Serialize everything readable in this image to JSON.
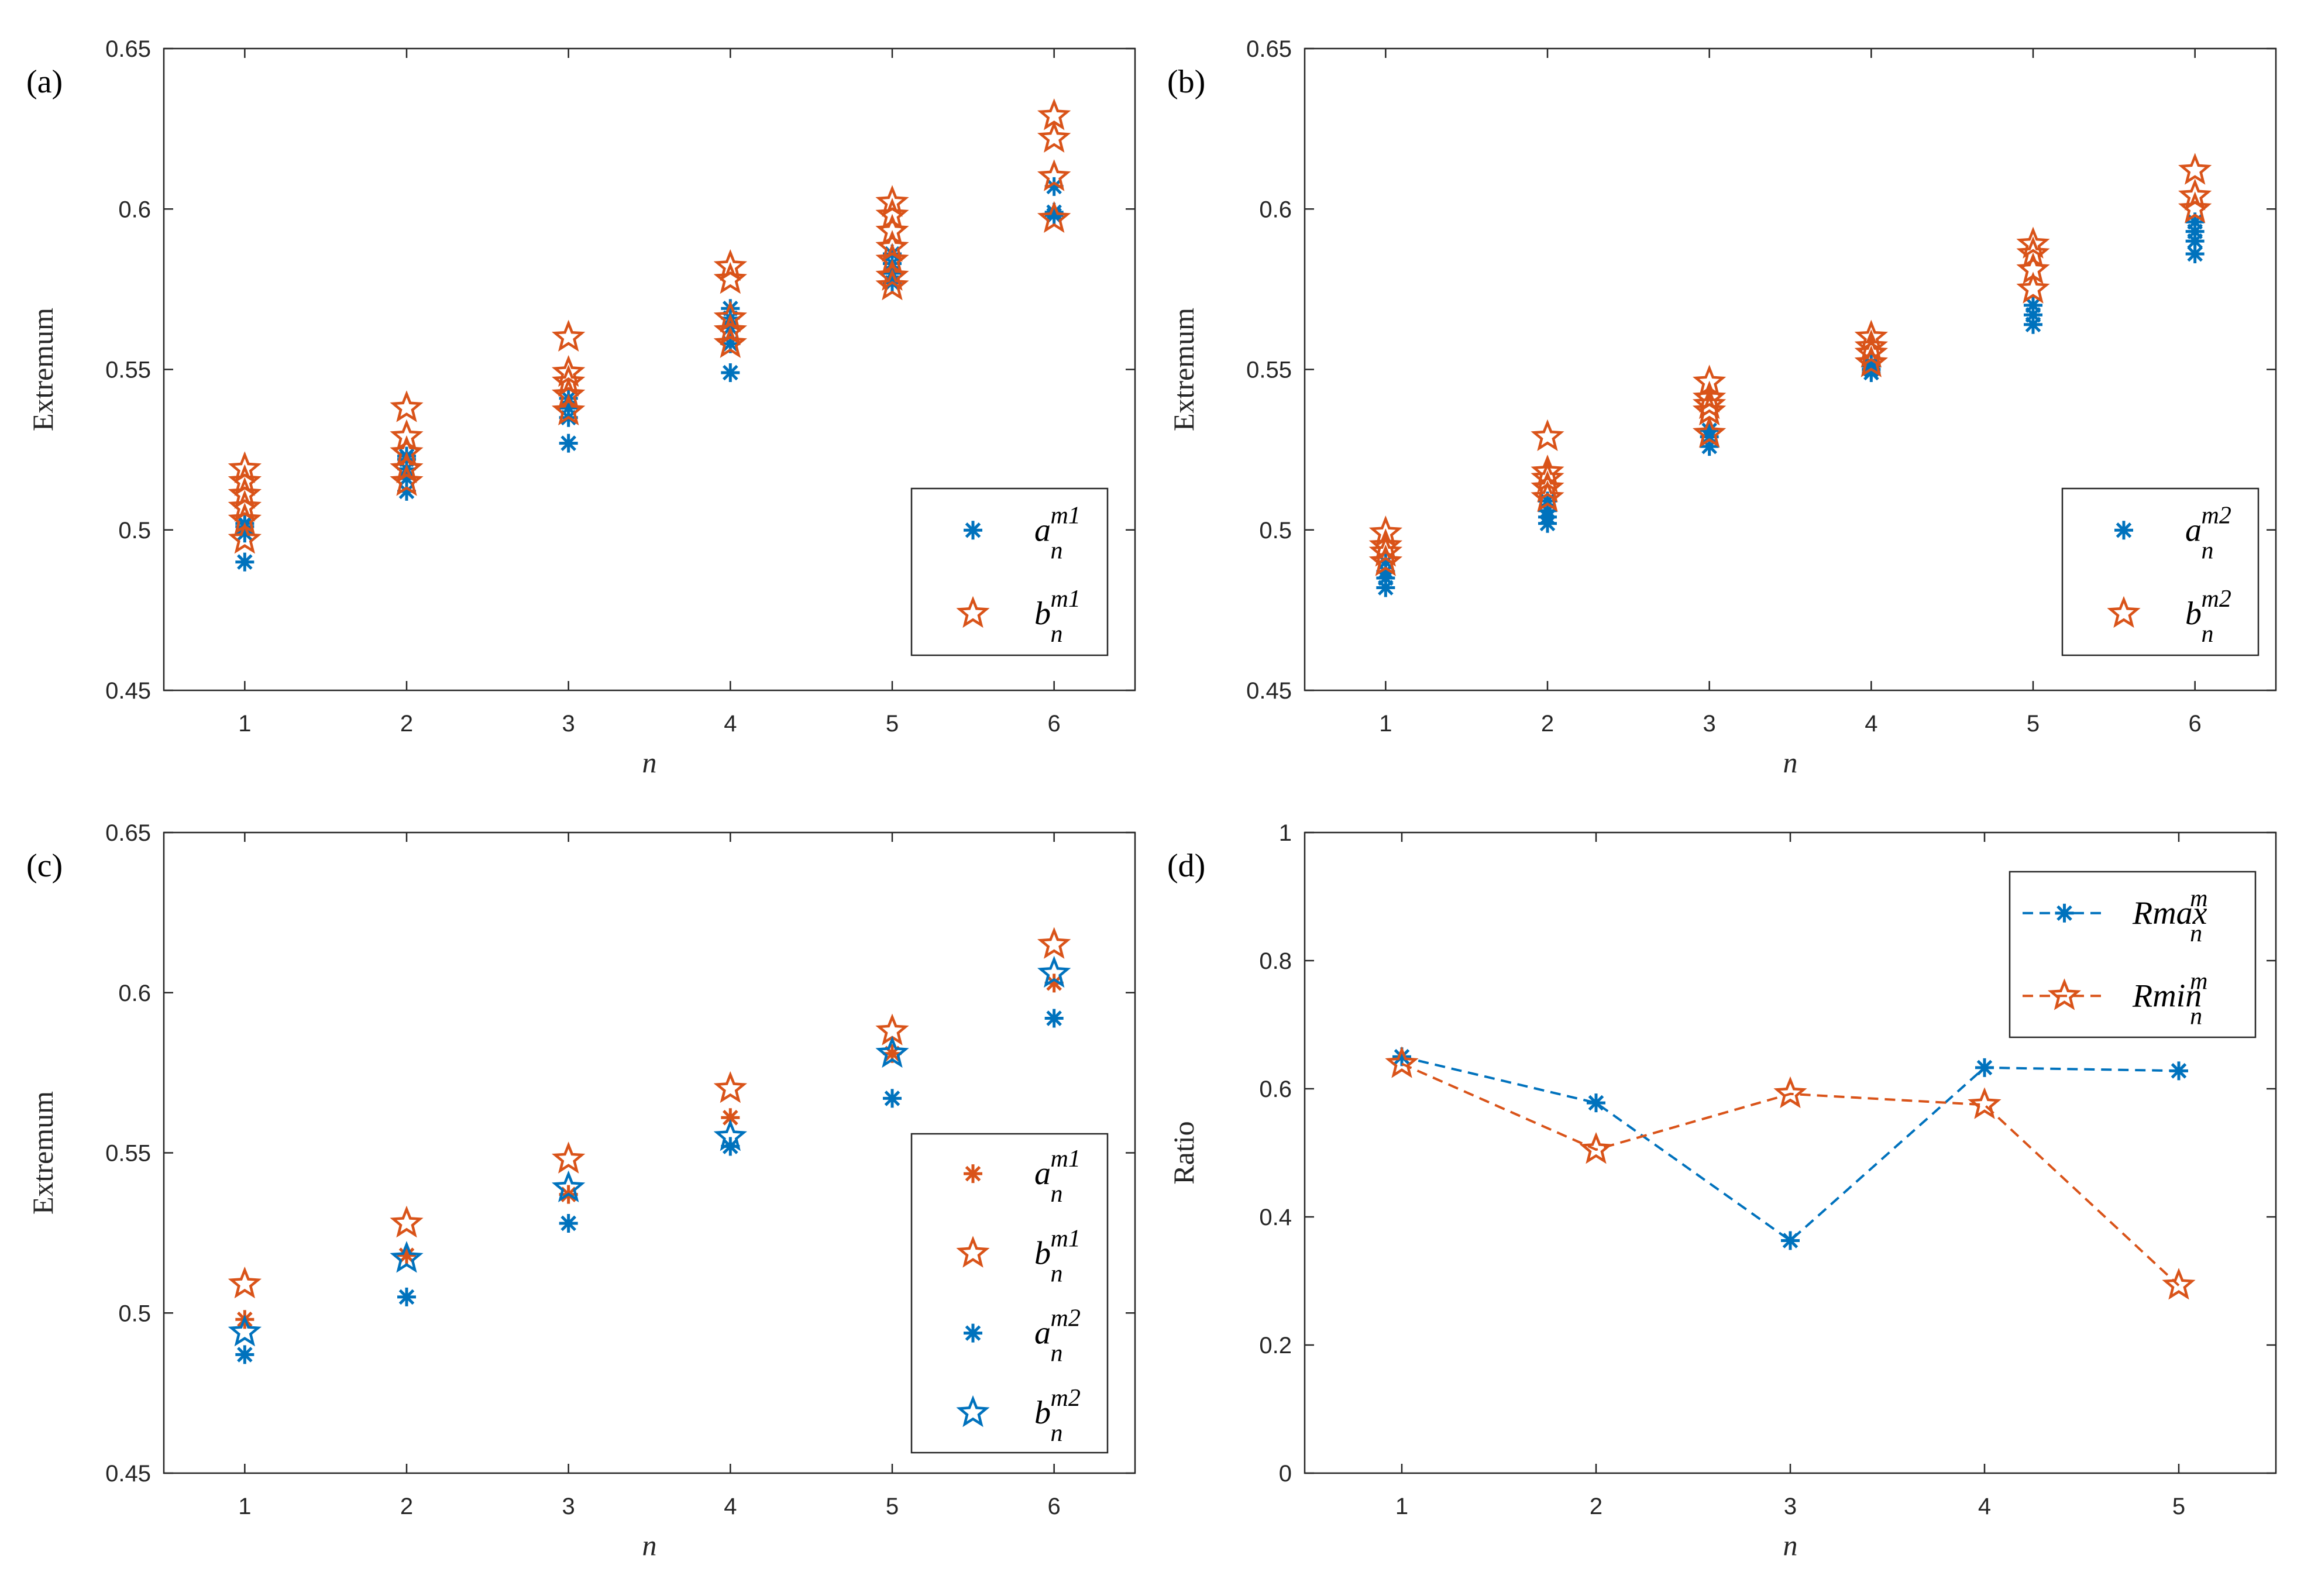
{
  "colors": {
    "blue": "#0072BD",
    "orange": "#D95319",
    "axis": "#262626"
  },
  "chart_data": [
    {
      "panel": "(a)",
      "type": "scatter",
      "xlabel": "n",
      "ylabel": "Extremum",
      "xlim": [
        0.5,
        6.5
      ],
      "ylim": [
        0.45,
        0.65
      ],
      "xticks": [
        "1",
        "2",
        "3",
        "4",
        "5",
        "6"
      ],
      "yticks": [
        "0.45",
        "0.5",
        "0.55",
        "0.6",
        "0.65"
      ],
      "legend_position": "bottom-right",
      "series": [
        {
          "name": "a",
          "sup": "m1",
          "sub": "n",
          "marker": "asterisk",
          "color": "blue",
          "points": [
            [
              1,
              0.49
            ],
            [
              1,
              0.499
            ],
            [
              1,
              0.501
            ],
            [
              1,
              0.502
            ],
            [
              2,
              0.512
            ],
            [
              2,
              0.516
            ],
            [
              2,
              0.519
            ],
            [
              2,
              0.522
            ],
            [
              2,
              0.523
            ],
            [
              3,
              0.527
            ],
            [
              3,
              0.535
            ],
            [
              3,
              0.538
            ],
            [
              3,
              0.541
            ],
            [
              4,
              0.549
            ],
            [
              4,
              0.558
            ],
            [
              4,
              0.563
            ],
            [
              4,
              0.566
            ],
            [
              4,
              0.569
            ],
            [
              5,
              0.577
            ],
            [
              5,
              0.58
            ],
            [
              5,
              0.583
            ],
            [
              5,
              0.586
            ],
            [
              6,
              0.598
            ],
            [
              6,
              0.599
            ],
            [
              6,
              0.607
            ]
          ]
        },
        {
          "name": "b",
          "sup": "m1",
          "sub": "n",
          "marker": "star",
          "color": "orange",
          "points": [
            [
              1,
              0.497
            ],
            [
              1,
              0.503
            ],
            [
              1,
              0.507
            ],
            [
              1,
              0.511
            ],
            [
              1,
              0.515
            ],
            [
              1,
              0.519
            ],
            [
              2,
              0.515
            ],
            [
              2,
              0.519
            ],
            [
              2,
              0.524
            ],
            [
              2,
              0.529
            ],
            [
              2,
              0.538
            ],
            [
              3,
              0.537
            ],
            [
              3,
              0.542
            ],
            [
              3,
              0.546
            ],
            [
              3,
              0.549
            ],
            [
              3,
              0.56
            ],
            [
              4,
              0.558
            ],
            [
              4,
              0.562
            ],
            [
              4,
              0.566
            ],
            [
              4,
              0.578
            ],
            [
              4,
              0.582
            ],
            [
              5,
              0.576
            ],
            [
              5,
              0.579
            ],
            [
              5,
              0.584
            ],
            [
              5,
              0.588
            ],
            [
              5,
              0.593
            ],
            [
              5,
              0.598
            ],
            [
              5,
              0.602
            ],
            [
              6,
              0.597
            ],
            [
              6,
              0.61
            ],
            [
              6,
              0.622
            ],
            [
              6,
              0.629
            ]
          ]
        }
      ]
    },
    {
      "panel": "(b)",
      "type": "scatter",
      "xlabel": "n",
      "ylabel": "Extremum",
      "xlim": [
        0.5,
        6.5
      ],
      "ylim": [
        0.45,
        0.65
      ],
      "xticks": [
        "1",
        "2",
        "3",
        "4",
        "5",
        "6"
      ],
      "yticks": [
        "0.45",
        "0.5",
        "0.55",
        "0.6",
        "0.65"
      ],
      "legend_position": "bottom-right",
      "series": [
        {
          "name": "a",
          "sup": "m2",
          "sub": "n",
          "marker": "asterisk",
          "color": "blue",
          "points": [
            [
              1,
              0.482
            ],
            [
              1,
              0.485
            ],
            [
              1,
              0.487
            ],
            [
              1,
              0.49
            ],
            [
              2,
              0.502
            ],
            [
              2,
              0.504
            ],
            [
              2,
              0.506
            ],
            [
              2,
              0.509
            ],
            [
              3,
              0.526
            ],
            [
              3,
              0.529
            ],
            [
              3,
              0.531
            ],
            [
              4,
              0.549
            ],
            [
              4,
              0.55
            ],
            [
              4,
              0.551
            ],
            [
              4,
              0.552
            ],
            [
              5,
              0.564
            ],
            [
              5,
              0.567
            ],
            [
              5,
              0.57
            ],
            [
              6,
              0.586
            ],
            [
              6,
              0.59
            ],
            [
              6,
              0.593
            ],
            [
              6,
              0.596
            ]
          ]
        },
        {
          "name": "b",
          "sup": "m2",
          "sub": "n",
          "marker": "star",
          "color": "orange",
          "points": [
            [
              1,
              0.49
            ],
            [
              1,
              0.493
            ],
            [
              1,
              0.495
            ],
            [
              1,
              0.499
            ],
            [
              2,
              0.51
            ],
            [
              2,
              0.513
            ],
            [
              2,
              0.516
            ],
            [
              2,
              0.518
            ],
            [
              2,
              0.529
            ],
            [
              3,
              0.53
            ],
            [
              3,
              0.537
            ],
            [
              3,
              0.539
            ],
            [
              3,
              0.541
            ],
            [
              3,
              0.546
            ],
            [
              4,
              0.552
            ],
            [
              4,
              0.555
            ],
            [
              4,
              0.557
            ],
            [
              4,
              0.56
            ],
            [
              5,
              0.575
            ],
            [
              5,
              0.581
            ],
            [
              5,
              0.586
            ],
            [
              5,
              0.589
            ],
            [
              6,
              0.6
            ],
            [
              6,
              0.604
            ],
            [
              6,
              0.612
            ]
          ]
        }
      ]
    },
    {
      "panel": "(c)",
      "type": "scatter",
      "xlabel": "n",
      "ylabel": "Extremum",
      "xlim": [
        0.5,
        6.5
      ],
      "ylim": [
        0.45,
        0.65
      ],
      "xticks": [
        "1",
        "2",
        "3",
        "4",
        "5",
        "6"
      ],
      "yticks": [
        "0.45",
        "0.5",
        "0.55",
        "0.6",
        "0.65"
      ],
      "legend_position": "bottom-right",
      "series": [
        {
          "name": "a",
          "sup": "m1",
          "sub": "n",
          "marker": "asterisk",
          "color": "orange",
          "points": [
            [
              1,
              0.498
            ],
            [
              2,
              0.518
            ],
            [
              3,
              0.537
            ],
            [
              4,
              0.561
            ],
            [
              5,
              0.581
            ],
            [
              6,
              0.603
            ]
          ]
        },
        {
          "name": "b",
          "sup": "m1",
          "sub": "n",
          "marker": "star",
          "color": "orange",
          "points": [
            [
              1,
              0.509
            ],
            [
              2,
              0.528
            ],
            [
              3,
              0.548
            ],
            [
              4,
              0.57
            ],
            [
              5,
              0.588
            ],
            [
              6,
              0.615
            ]
          ]
        },
        {
          "name": "a",
          "sup": "m2",
          "sub": "n",
          "marker": "asterisk",
          "color": "blue",
          "points": [
            [
              1,
              0.487
            ],
            [
              2,
              0.505
            ],
            [
              3,
              0.528
            ],
            [
              4,
              0.552
            ],
            [
              5,
              0.567
            ],
            [
              6,
              0.592
            ]
          ]
        },
        {
          "name": "b",
          "sup": "m2",
          "sub": "n",
          "marker": "star",
          "color": "blue",
          "points": [
            [
              1,
              0.494
            ],
            [
              2,
              0.517
            ],
            [
              3,
              0.539
            ],
            [
              4,
              0.555
            ],
            [
              5,
              0.581
            ],
            [
              6,
              0.606
            ]
          ]
        }
      ]
    },
    {
      "panel": "(d)",
      "type": "line",
      "xlabel": "n",
      "ylabel": "Ratio",
      "xlim": [
        0.5,
        5.5
      ],
      "ylim": [
        0,
        1
      ],
      "xticks": [
        "1",
        "2",
        "3",
        "4",
        "5"
      ],
      "yticks": [
        "0",
        "0.2",
        "0.4",
        "0.6",
        "0.8",
        "1"
      ],
      "legend_position": "top-right",
      "series": [
        {
          "name": "Rmax",
          "sup": "m",
          "sub": "n",
          "marker": "asterisk",
          "color": "blue",
          "line": "dashed",
          "points": [
            [
              1,
              0.65
            ],
            [
              2,
              0.578
            ],
            [
              3,
              0.363
            ],
            [
              4,
              0.633
            ],
            [
              5,
              0.628
            ]
          ]
        },
        {
          "name": "Rmin",
          "sup": "m",
          "sub": "n",
          "marker": "star",
          "color": "orange",
          "line": "dashed",
          "points": [
            [
              1,
              0.639
            ],
            [
              2,
              0.505
            ],
            [
              3,
              0.592
            ],
            [
              4,
              0.575
            ],
            [
              5,
              0.293
            ]
          ]
        }
      ]
    }
  ]
}
